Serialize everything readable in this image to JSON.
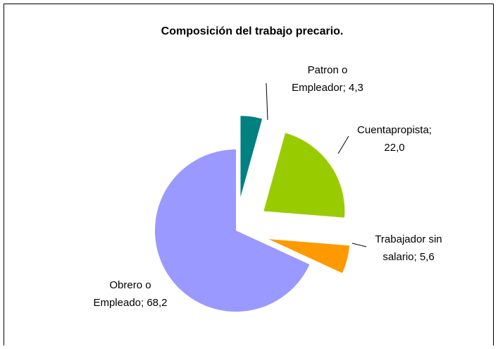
{
  "chart_data": {
    "type": "pie",
    "title": "Composición del trabajo precario.",
    "values": [
      4.3,
      22.0,
      5.6,
      68.2
    ],
    "value_labels": [
      [
        "Patron o",
        "Empleador; 4,3"
      ],
      [
        "Cuentapropista;",
        "22,0"
      ],
      [
        "Trabajador sin",
        "salario; 5,6"
      ],
      [
        "Obrero o",
        "Empleado; 68,2"
      ]
    ],
    "colors": [
      "#008080",
      "#99cc00",
      "#ff9900",
      "#9999ff"
    ],
    "exploded": [
      true,
      true,
      true,
      false
    ]
  }
}
